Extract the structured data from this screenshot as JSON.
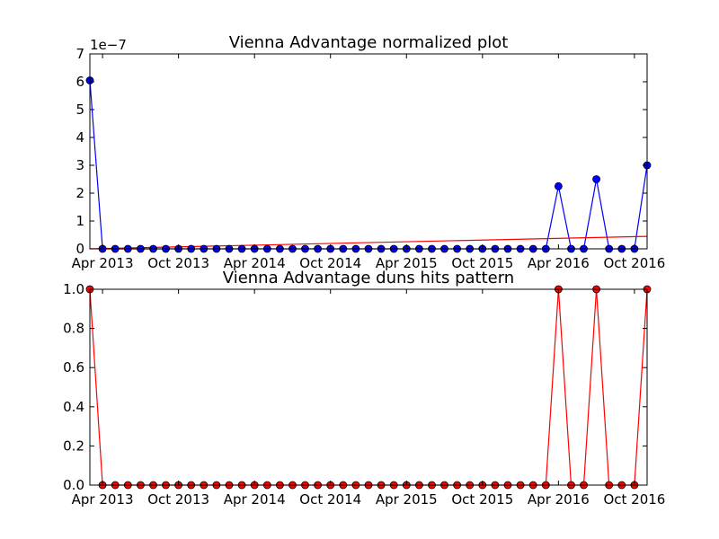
{
  "chart_data": [
    {
      "type": "line",
      "title": "Vienna Advantage normalized plot",
      "xlabel": "",
      "ylabel": "",
      "y_scale_label": "1e−7",
      "x_tick_labels": [
        "Apr 2013",
        "Oct 2013",
        "Apr 2014",
        "Oct 2014",
        "Apr 2015",
        "Oct 2015",
        "Apr 2016",
        "Oct 2016"
      ],
      "y_tick_labels": [
        "0",
        "1",
        "2",
        "3",
        "4",
        "5",
        "6",
        "7"
      ],
      "ylim": [
        0,
        7
      ],
      "grid": false,
      "series": [
        {
          "color": "#0000ff",
          "marker": "circle",
          "x": [
            "2013-03",
            "2013-04",
            "2013-05",
            "2013-06",
            "2013-07",
            "2013-08",
            "2013-09",
            "2013-10",
            "2013-11",
            "2013-12",
            "2014-01",
            "2014-02",
            "2014-03",
            "2014-04",
            "2014-05",
            "2014-06",
            "2014-07",
            "2014-08",
            "2014-09",
            "2014-10",
            "2014-11",
            "2014-12",
            "2015-01",
            "2015-02",
            "2015-03",
            "2015-04",
            "2015-05",
            "2015-06",
            "2015-07",
            "2015-08",
            "2015-09",
            "2015-10",
            "2015-11",
            "2015-12",
            "2016-01",
            "2016-02",
            "2016-03",
            "2016-04",
            "2016-05",
            "2016-06",
            "2016-07",
            "2016-08",
            "2016-09",
            "2016-10",
            "2016-11"
          ],
          "y": [
            6.05,
            0,
            0,
            0,
            0,
            0,
            0,
            0,
            0,
            0,
            0,
            0,
            0,
            0,
            0,
            0,
            0,
            0,
            0,
            0,
            0,
            0,
            0,
            0,
            0,
            0,
            0,
            0,
            0,
            0,
            0,
            0,
            0,
            0,
            0,
            0,
            0,
            2.25,
            0,
            0,
            2.5,
            0,
            0,
            0,
            3.0
          ]
        },
        {
          "color": "#ff0000",
          "marker": "none",
          "x": [
            "2013-03",
            "2016-11"
          ],
          "y": [
            0.0,
            0.45
          ]
        }
      ]
    },
    {
      "type": "line",
      "title": "Vienna Advantage duns hits pattern",
      "xlabel": "",
      "ylabel": "",
      "x_tick_labels": [
        "Apr 2013",
        "Oct 2013",
        "Apr 2014",
        "Oct 2014",
        "Apr 2015",
        "Oct 2015",
        "Apr 2016",
        "Oct 2016"
      ],
      "y_tick_labels": [
        "0.0",
        "0.2",
        "0.4",
        "0.6",
        "0.8",
        "1.0"
      ],
      "ylim": [
        0,
        1
      ],
      "grid": false,
      "series": [
        {
          "color": "#ff0000",
          "marker": "circle",
          "x": [
            "2013-03",
            "2013-04",
            "2013-05",
            "2013-06",
            "2013-07",
            "2013-08",
            "2013-09",
            "2013-10",
            "2013-11",
            "2013-12",
            "2014-01",
            "2014-02",
            "2014-03",
            "2014-04",
            "2014-05",
            "2014-06",
            "2014-07",
            "2014-08",
            "2014-09",
            "2014-10",
            "2014-11",
            "2014-12",
            "2015-01",
            "2015-02",
            "2015-03",
            "2015-04",
            "2015-05",
            "2015-06",
            "2015-07",
            "2015-08",
            "2015-09",
            "2015-10",
            "2015-11",
            "2015-12",
            "2016-01",
            "2016-02",
            "2016-03",
            "2016-04",
            "2016-05",
            "2016-06",
            "2016-07",
            "2016-08",
            "2016-09",
            "2016-10",
            "2016-11"
          ],
          "y": [
            1,
            0,
            0,
            0,
            0,
            0,
            0,
            0,
            0,
            0,
            0,
            0,
            0,
            0,
            0,
            0,
            0,
            0,
            0,
            0,
            0,
            0,
            0,
            0,
            0,
            0,
            0,
            0,
            0,
            0,
            0,
            0,
            0,
            0,
            0,
            0,
            0,
            1,
            0,
            0,
            1,
            0,
            0,
            0,
            1
          ]
        }
      ]
    }
  ]
}
